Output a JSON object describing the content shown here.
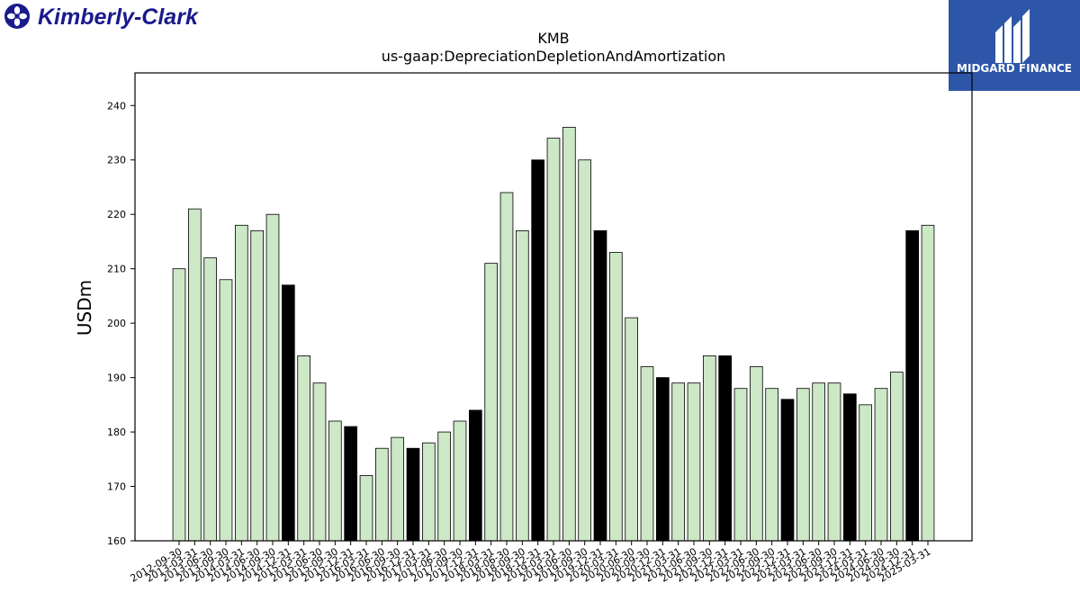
{
  "logos": {
    "left_brand_text": "Kimberly-Clark",
    "right_brand_text": "MIDGARD FINANCE"
  },
  "colors": {
    "bar_default": "#cce8c6",
    "bar_highlight": "#000000",
    "bar_edge": "#000000",
    "brand_left": "#1a1a8c",
    "brand_right_bg": "#2e56a8"
  },
  "chart_data": {
    "type": "bar",
    "title": "KMB",
    "subtitle": "us-gaap:DepreciationDepletionAndAmortization",
    "ylabel": "USDm",
    "ylim": [
      160,
      246
    ],
    "yticks": [
      160,
      170,
      180,
      190,
      200,
      210,
      220,
      230,
      240
    ],
    "grid": false,
    "categories": [
      "2012-09-30",
      "2013-03-31",
      "2013-06-30",
      "2013-09-30",
      "2014-03-31",
      "2014-06-30",
      "2014-09-30",
      "2014-12-31",
      "2015-03-31",
      "2015-06-30",
      "2015-09-30",
      "2015-12-31",
      "2016-03-31",
      "2016-06-30",
      "2016-09-30",
      "2016-12-31",
      "2017-03-31",
      "2017-06-30",
      "2017-09-30",
      "2017-12-31",
      "2018-03-31",
      "2018-06-30",
      "2018-09-30",
      "2018-12-31",
      "2019-03-31",
      "2019-06-30",
      "2019-09-30",
      "2019-12-31",
      "2020-03-31",
      "2020-06-30",
      "2020-09-30",
      "2020-12-31",
      "2021-03-31",
      "2021-06-30",
      "2021-09-30",
      "2021-12-31",
      "2022-03-31",
      "2022-06-30",
      "2022-09-30",
      "2022-12-31",
      "2023-03-31",
      "2023-06-30",
      "2023-09-30",
      "2023-12-31",
      "2024-03-31",
      "2024-06-30",
      "2024-09-30",
      "2024-12-31",
      "2025-03-31"
    ],
    "values": [
      210,
      221,
      212,
      208,
      218,
      217,
      220,
      207,
      194,
      189,
      182,
      181,
      172,
      177,
      179,
      177,
      178,
      180,
      182,
      184,
      211,
      224,
      217,
      230,
      234,
      236,
      230,
      217,
      213,
      201,
      192,
      190,
      189,
      189,
      194,
      194,
      188,
      192,
      188,
      186,
      188,
      189,
      189,
      187,
      185,
      188,
      191,
      217,
      218
    ],
    "highlight": [
      false,
      false,
      false,
      false,
      false,
      false,
      false,
      true,
      false,
      false,
      false,
      true,
      false,
      false,
      false,
      true,
      false,
      false,
      false,
      true,
      false,
      false,
      false,
      true,
      false,
      false,
      false,
      true,
      false,
      false,
      false,
      true,
      false,
      false,
      false,
      true,
      false,
      false,
      false,
      true,
      false,
      false,
      false,
      true,
      false,
      false,
      false,
      true,
      false
    ]
  }
}
